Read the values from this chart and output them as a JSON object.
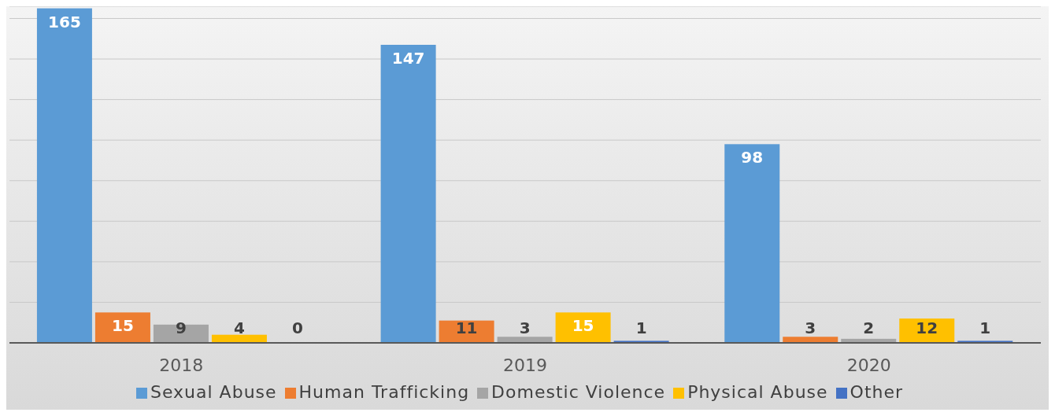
{
  "chart_data": {
    "type": "bar",
    "categories": [
      "2018",
      "2019",
      "2020"
    ],
    "series": [
      {
        "name": "Sexual Abuse",
        "color": "#5b9bd5",
        "values": [
          165,
          147,
          98
        ]
      },
      {
        "name": "Human Trafficking",
        "color": "#ed7d31",
        "values": [
          15,
          11,
          3
        ]
      },
      {
        "name": "Domestic Violence",
        "color": "#a5a5a5",
        "values": [
          9,
          3,
          2
        ]
      },
      {
        "name": "Physical Abuse",
        "color": "#ffc000",
        "values": [
          4,
          15,
          12
        ]
      },
      {
        "name": "Other",
        "color": "#4472c4",
        "values": [
          0,
          1,
          1
        ]
      }
    ],
    "ylim": [
      0,
      166
    ],
    "yticks": [
      {
        "value": 0,
        "label": null
      },
      {
        "value": 20,
        "label": null
      },
      {
        "value": 40,
        "label": null
      },
      {
        "value": 60,
        "label": null
      },
      {
        "value": 80,
        "label": null
      },
      {
        "value": 100,
        "label": null
      },
      {
        "value": 120,
        "label": null
      },
      {
        "value": 140,
        "label": null
      },
      {
        "value": 160,
        "label": null
      }
    ],
    "grid": "y",
    "legend": "bottom",
    "data_labels": true,
    "tick_labels": "x"
  }
}
